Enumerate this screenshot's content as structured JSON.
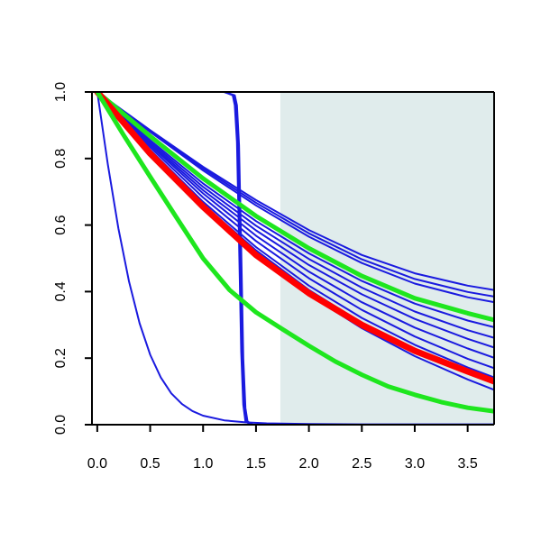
{
  "chart_data": {
    "type": "line",
    "title": "",
    "xlabel": "",
    "ylabel": "",
    "xlim": [
      -0.05,
      3.75
    ],
    "ylim": [
      0.0,
      1.0
    ],
    "x_ticks": [
      0.0,
      0.5,
      1.0,
      1.5,
      2.0,
      2.5,
      3.0,
      3.5
    ],
    "x_tick_labels": [
      "0.0",
      "0.5",
      "1.0",
      "1.5",
      "2.0",
      "2.5",
      "3.0",
      "3.5"
    ],
    "y_ticks": [
      0.0,
      0.2,
      0.4,
      0.6,
      0.8,
      1.0
    ],
    "y_tick_labels": [
      "0.0",
      "0.2",
      "0.4",
      "0.6",
      "0.8",
      "1.0"
    ],
    "shaded_region": {
      "x_start": 1.73,
      "x_end": 3.75,
      "color": "#e0ecec"
    },
    "grid": false,
    "legend": "none",
    "colors": {
      "blue": "#1a1adf",
      "red": "#ff0000",
      "green": "#1ee61e",
      "axis": "#000000"
    },
    "series": [
      {
        "color": "#1a1adf",
        "width": 2,
        "x": [
          0,
          0.1,
          0.2,
          0.3,
          0.4,
          0.5,
          0.6,
          0.7,
          0.8,
          0.9,
          1.0,
          1.2,
          1.4,
          1.6,
          1.8,
          2.0,
          2.5,
          3.0,
          3.75
        ],
        "y": [
          1.0,
          0.782,
          0.59,
          0.43,
          0.305,
          0.21,
          0.142,
          0.094,
          0.062,
          0.041,
          0.027,
          0.013,
          0.007,
          0.004,
          0.003,
          0.002,
          0.001,
          0.001,
          0.001
        ]
      },
      {
        "color": "#1a1adf",
        "width": 2,
        "x": [
          0,
          1.0,
          1.2,
          1.28,
          1.3,
          1.32,
          1.34,
          1.36,
          1.38,
          1.4,
          1.45,
          1.6,
          3.75
        ],
        "y": [
          1.0,
          1.0,
          1.0,
          0.99,
          0.96,
          0.85,
          0.55,
          0.22,
          0.06,
          0.01,
          0.0,
          0.0,
          0.0
        ]
      },
      {
        "color": "#1a1adf",
        "width": 2,
        "x": [
          0,
          1.0,
          1.2,
          1.29,
          1.31,
          1.33,
          1.35,
          1.37,
          1.39,
          1.41,
          1.46,
          1.6,
          3.75
        ],
        "y": [
          1.0,
          1.0,
          1.0,
          0.99,
          0.96,
          0.84,
          0.54,
          0.21,
          0.05,
          0.01,
          0.0,
          0.0,
          0.0
        ]
      },
      {
        "color": "#1a1adf",
        "width": 2,
        "x": [
          0,
          1.0,
          1.2,
          1.3,
          1.32,
          1.34,
          1.36,
          1.38,
          1.4,
          1.42,
          1.47,
          1.6,
          3.75
        ],
        "y": [
          1.0,
          1.0,
          1.0,
          0.99,
          0.96,
          0.84,
          0.53,
          0.2,
          0.05,
          0.01,
          0.0,
          0.0,
          0.0
        ]
      },
      {
        "color": "#1a1adf",
        "width": 2,
        "x": [
          0,
          0.5,
          1.0,
          1.5,
          2.0,
          2.5,
          3.0,
          3.5,
          3.75
        ],
        "y": [
          1.0,
          0.885,
          0.775,
          0.675,
          0.585,
          0.51,
          0.455,
          0.418,
          0.405
        ]
      },
      {
        "color": "#1a1adf",
        "width": 2,
        "x": [
          0,
          0.5,
          1.0,
          1.5,
          2.0,
          2.5,
          3.0,
          3.5,
          3.75
        ],
        "y": [
          1.0,
          0.883,
          0.77,
          0.667,
          0.575,
          0.497,
          0.438,
          0.399,
          0.385
        ]
      },
      {
        "color": "#1a1adf",
        "width": 2,
        "x": [
          0,
          0.5,
          1.0,
          1.5,
          2.0,
          2.5,
          3.0,
          3.5,
          3.75
        ],
        "y": [
          1.0,
          0.88,
          0.764,
          0.659,
          0.565,
          0.486,
          0.424,
          0.383,
          0.368
        ]
      },
      {
        "color": "#1a1adf",
        "width": 2,
        "x": [
          0,
          0.5,
          1.0,
          1.5,
          2.0,
          2.5,
          3.0,
          3.5,
          3.75
        ],
        "y": [
          1.0,
          0.855,
          0.725,
          0.612,
          0.515,
          0.432,
          0.364,
          0.313,
          0.293
        ]
      },
      {
        "color": "#1a1adf",
        "width": 2,
        "x": [
          0,
          0.5,
          1.0,
          1.5,
          2.0,
          2.5,
          3.0,
          3.5,
          3.75
        ],
        "y": [
          1.0,
          0.85,
          0.715,
          0.598,
          0.498,
          0.412,
          0.34,
          0.284,
          0.261
        ]
      },
      {
        "color": "#1a1adf",
        "width": 2,
        "x": [
          0,
          0.5,
          1.0,
          1.5,
          2.0,
          2.5,
          3.0,
          3.5,
          3.75
        ],
        "y": [
          1.0,
          0.845,
          0.705,
          0.584,
          0.48,
          0.392,
          0.318,
          0.258,
          0.232
        ]
      },
      {
        "color": "#1a1adf",
        "width": 2,
        "x": [
          0,
          0.5,
          1.0,
          1.5,
          2.0,
          2.5,
          3.0,
          3.5,
          3.75
        ],
        "y": [
          1.0,
          0.84,
          0.695,
          0.568,
          0.46,
          0.368,
          0.292,
          0.229,
          0.201
        ]
      },
      {
        "color": "#1a1adf",
        "width": 2,
        "x": [
          0,
          0.5,
          1.0,
          1.5,
          2.0,
          2.5,
          3.0,
          3.5,
          3.75
        ],
        "y": [
          1.0,
          0.834,
          0.683,
          0.552,
          0.44,
          0.345,
          0.265,
          0.198,
          0.17
        ]
      },
      {
        "color": "#1a1adf",
        "width": 2,
        "x": [
          0,
          0.5,
          1.0,
          1.5,
          2.0,
          2.5,
          3.0,
          3.5,
          3.75
        ],
        "y": [
          1.0,
          0.826,
          0.67,
          0.534,
          0.418,
          0.321,
          0.24,
          0.172,
          0.142
        ]
      },
      {
        "color": "#1a1adf",
        "width": 2,
        "x": [
          0,
          0.5,
          1.0,
          1.5,
          2.0,
          2.5,
          3.0,
          3.5,
          3.75
        ],
        "y": [
          1.0,
          0.822,
          0.662,
          0.524,
          0.405,
          0.306,
          0.224,
          0.155,
          0.125
        ]
      },
      {
        "color": "#1a1adf",
        "width": 2,
        "x": [
          0,
          0.5,
          1.0,
          1.5,
          2.0,
          2.5,
          3.0,
          3.5,
          3.75
        ],
        "y": [
          1.0,
          0.815,
          0.65,
          0.51,
          0.39,
          0.29,
          0.206,
          0.136,
          0.105
        ]
      },
      {
        "color": "#1ee61e",
        "width": 5,
        "x": [
          0,
          0.5,
          1.0,
          1.5,
          2.0,
          2.5,
          3.0,
          3.5,
          3.75
        ],
        "y": [
          1.0,
          0.867,
          0.74,
          0.627,
          0.53,
          0.447,
          0.38,
          0.335,
          0.315
        ]
      },
      {
        "color": "#ff0000",
        "width": 7,
        "x": [
          0,
          0.5,
          1.0,
          1.5,
          2.0,
          2.5,
          3.0,
          3.5,
          3.75
        ],
        "y": [
          1.0,
          0.815,
          0.655,
          0.51,
          0.395,
          0.3,
          0.222,
          0.16,
          0.13
        ]
      },
      {
        "color": "#1ee61e",
        "width": 5,
        "x": [
          0,
          0.25,
          0.5,
          0.75,
          1.0,
          1.25,
          1.5,
          1.75,
          2.0,
          2.25,
          2.5,
          2.75,
          3.0,
          3.25,
          3.5,
          3.75
        ],
        "y": [
          1.0,
          0.87,
          0.745,
          0.622,
          0.5,
          0.405,
          0.338,
          0.287,
          0.237,
          0.19,
          0.15,
          0.115,
          0.09,
          0.068,
          0.051,
          0.04
        ]
      }
    ]
  }
}
